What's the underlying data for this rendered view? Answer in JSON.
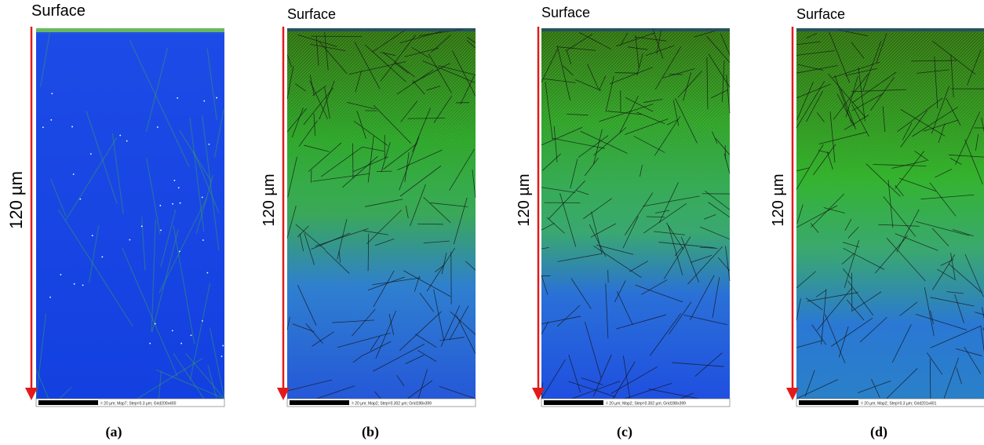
{
  "panels": [
    {
      "surface": "Surface",
      "depth_label": "120 µm",
      "scale_text": "= 20 µm; Map7; Step=0.3 µm; Grid200x400",
      "caption": "(a)"
    },
    {
      "surface": "Surface",
      "depth_label": "120 µm",
      "scale_text": "= 20 µm; Map2; Step=0.302 µm; Grid198x399",
      "caption": "(b)"
    },
    {
      "surface": "Surface",
      "depth_label": "120 µm",
      "scale_text": "= 20 µm; Map2; Step=0.302 µm; Grid198x399",
      "caption": "(c)"
    },
    {
      "surface": "Surface",
      "depth_label": "120 µm",
      "scale_text": "= 20 µm; Map2; Step=0.3 µm; Grid201x401",
      "caption": "(d)"
    }
  ]
}
